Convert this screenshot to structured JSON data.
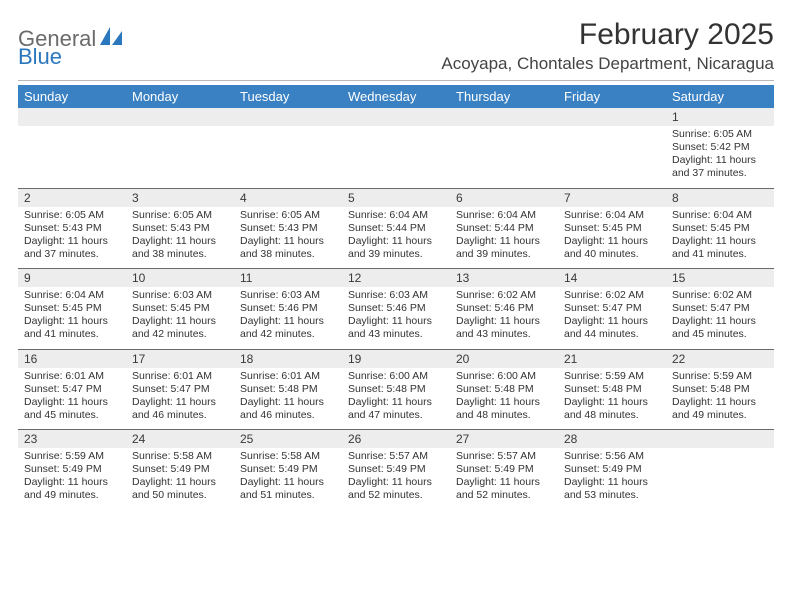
{
  "brand": {
    "part1": "General",
    "part2": "Blue"
  },
  "title": "February 2025",
  "location": "Acoyapa, Chontales Department, Nicaragua",
  "colors": {
    "header_bg": "#3a81c4",
    "header_text": "#ffffff",
    "daynum_bg": "#ededed",
    "divider": "#6a6a6a",
    "brand_gray": "#6b6b6b",
    "brand_blue": "#2b77bd"
  },
  "weekdays": [
    "Sunday",
    "Monday",
    "Tuesday",
    "Wednesday",
    "Thursday",
    "Friday",
    "Saturday"
  ],
  "weeks": [
    [
      null,
      null,
      null,
      null,
      null,
      null,
      {
        "n": "1",
        "sr": "6:05 AM",
        "ss": "5:42 PM",
        "dl": "11 hours and 37 minutes."
      }
    ],
    [
      {
        "n": "2",
        "sr": "6:05 AM",
        "ss": "5:43 PM",
        "dl": "11 hours and 37 minutes."
      },
      {
        "n": "3",
        "sr": "6:05 AM",
        "ss": "5:43 PM",
        "dl": "11 hours and 38 minutes."
      },
      {
        "n": "4",
        "sr": "6:05 AM",
        "ss": "5:43 PM",
        "dl": "11 hours and 38 minutes."
      },
      {
        "n": "5",
        "sr": "6:04 AM",
        "ss": "5:44 PM",
        "dl": "11 hours and 39 minutes."
      },
      {
        "n": "6",
        "sr": "6:04 AM",
        "ss": "5:44 PM",
        "dl": "11 hours and 39 minutes."
      },
      {
        "n": "7",
        "sr": "6:04 AM",
        "ss": "5:45 PM",
        "dl": "11 hours and 40 minutes."
      },
      {
        "n": "8",
        "sr": "6:04 AM",
        "ss": "5:45 PM",
        "dl": "11 hours and 41 minutes."
      }
    ],
    [
      {
        "n": "9",
        "sr": "6:04 AM",
        "ss": "5:45 PM",
        "dl": "11 hours and 41 minutes."
      },
      {
        "n": "10",
        "sr": "6:03 AM",
        "ss": "5:45 PM",
        "dl": "11 hours and 42 minutes."
      },
      {
        "n": "11",
        "sr": "6:03 AM",
        "ss": "5:46 PM",
        "dl": "11 hours and 42 minutes."
      },
      {
        "n": "12",
        "sr": "6:03 AM",
        "ss": "5:46 PM",
        "dl": "11 hours and 43 minutes."
      },
      {
        "n": "13",
        "sr": "6:02 AM",
        "ss": "5:46 PM",
        "dl": "11 hours and 43 minutes."
      },
      {
        "n": "14",
        "sr": "6:02 AM",
        "ss": "5:47 PM",
        "dl": "11 hours and 44 minutes."
      },
      {
        "n": "15",
        "sr": "6:02 AM",
        "ss": "5:47 PM",
        "dl": "11 hours and 45 minutes."
      }
    ],
    [
      {
        "n": "16",
        "sr": "6:01 AM",
        "ss": "5:47 PM",
        "dl": "11 hours and 45 minutes."
      },
      {
        "n": "17",
        "sr": "6:01 AM",
        "ss": "5:47 PM",
        "dl": "11 hours and 46 minutes."
      },
      {
        "n": "18",
        "sr": "6:01 AM",
        "ss": "5:48 PM",
        "dl": "11 hours and 46 minutes."
      },
      {
        "n": "19",
        "sr": "6:00 AM",
        "ss": "5:48 PM",
        "dl": "11 hours and 47 minutes."
      },
      {
        "n": "20",
        "sr": "6:00 AM",
        "ss": "5:48 PM",
        "dl": "11 hours and 48 minutes."
      },
      {
        "n": "21",
        "sr": "5:59 AM",
        "ss": "5:48 PM",
        "dl": "11 hours and 48 minutes."
      },
      {
        "n": "22",
        "sr": "5:59 AM",
        "ss": "5:48 PM",
        "dl": "11 hours and 49 minutes."
      }
    ],
    [
      {
        "n": "23",
        "sr": "5:59 AM",
        "ss": "5:49 PM",
        "dl": "11 hours and 49 minutes."
      },
      {
        "n": "24",
        "sr": "5:58 AM",
        "ss": "5:49 PM",
        "dl": "11 hours and 50 minutes."
      },
      {
        "n": "25",
        "sr": "5:58 AM",
        "ss": "5:49 PM",
        "dl": "11 hours and 51 minutes."
      },
      {
        "n": "26",
        "sr": "5:57 AM",
        "ss": "5:49 PM",
        "dl": "11 hours and 52 minutes."
      },
      {
        "n": "27",
        "sr": "5:57 AM",
        "ss": "5:49 PM",
        "dl": "11 hours and 52 minutes."
      },
      {
        "n": "28",
        "sr": "5:56 AM",
        "ss": "5:49 PM",
        "dl": "11 hours and 53 minutes."
      },
      null
    ]
  ]
}
